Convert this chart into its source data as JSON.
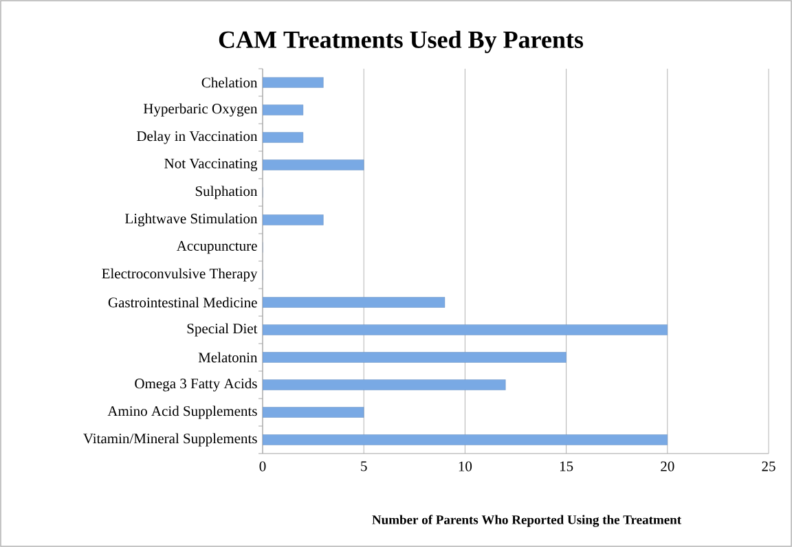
{
  "chart_data": {
    "type": "bar",
    "orientation": "horizontal",
    "title": "CAM Treatments Used By Parents",
    "xlabel": "Number of Parents Who Reported Using the Treatment",
    "categories": [
      "Chelation",
      "Hyperbaric Oxygen",
      "Delay in Vaccination",
      "Not Vaccinating",
      "Sulphation",
      "Lightwave Stimulation",
      "Accupuncture",
      "Electroconvulsive Therapy",
      "Gastrointestinal Medicine",
      "Special Diet",
      "Melatonin",
      "Omega 3 Fatty Acids",
      "Amino Acid Supplements",
      "Vitamin/Mineral Supplements"
    ],
    "values": [
      3,
      2,
      2,
      5,
      0,
      3,
      0,
      0,
      9,
      20,
      15,
      12,
      5,
      20
    ],
    "color": "#79a9e4",
    "xlim": [
      0,
      25
    ],
    "xticks": [
      0,
      5,
      10,
      15,
      20,
      25
    ],
    "grid": "x"
  }
}
